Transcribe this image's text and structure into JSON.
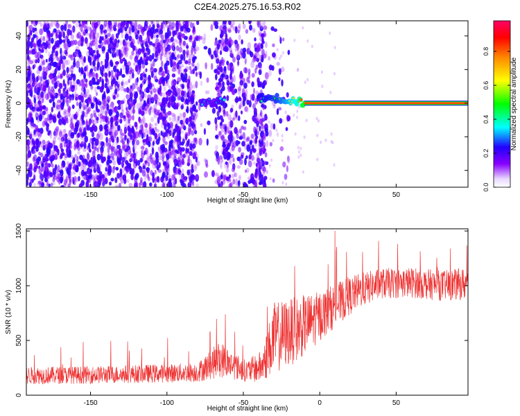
{
  "page": {
    "title": "C2E4.2025.275.16.53.R02"
  },
  "chart_data": [
    {
      "type": "heatmap",
      "name": "spectrogram",
      "xlabel": "Height of straight line (km)",
      "ylabel": "Frequency (Hz)",
      "xlim": [
        -192,
        97
      ],
      "ylim": [
        -50,
        49
      ],
      "xticks": [
        -150,
        -100,
        -50,
        0,
        50
      ],
      "yticks": [
        -40,
        -20,
        0,
        20,
        40
      ],
      "colorbar": {
        "label": "Normalized spectral amplitude",
        "range": [
          0.0,
          0.98
        ],
        "ticks": [
          "0.0",
          "0.2",
          "0.4",
          "0.6",
          "0.8"
        ],
        "tick_values": [
          0.0,
          0.2,
          0.4,
          0.6,
          0.8
        ],
        "colors": [
          "#ffffff",
          "#8800ff",
          "#2200ff",
          "#00ffff",
          "#00ff00",
          "#ffff00",
          "#ff8800",
          "#ff0000",
          "#ff0066"
        ]
      },
      "regions": [
        {
          "x_range": [
            -192,
            -80
          ],
          "density": "dense",
          "amplitude": 0.1
        },
        {
          "x_range": [
            -80,
            -68
          ],
          "density": "sparse",
          "amplitude": 0.05
        },
        {
          "x_range": [
            -68,
            -57
          ],
          "density": "dense",
          "amplitude": 0.1
        },
        {
          "x_range": [
            -57,
            -42
          ],
          "density": "medium",
          "amplitude": 0.07
        },
        {
          "x_range": [
            -42,
            -35
          ],
          "density": "dense",
          "amplitude": 0.1
        },
        {
          "x_range": [
            -35,
            -20
          ],
          "density": "sparse",
          "amplitude": 0.04
        }
      ],
      "signal_track": [
        {
          "x": -78,
          "y": 0,
          "amplitude": 0.35
        },
        {
          "x": -70,
          "y": 0,
          "amplitude": 0.3
        },
        {
          "x": -63,
          "y": 2,
          "amplitude": 0.4
        },
        {
          "x": -40,
          "y": 3,
          "amplitude": 0.45
        },
        {
          "x": -28,
          "y": 3,
          "amplitude": 0.5
        },
        {
          "x": -15,
          "y": 1,
          "amplitude": 0.7
        },
        {
          "x": -10,
          "y": 0,
          "amplitude": 0.9
        },
        {
          "x": 97,
          "y": 0,
          "amplitude": 0.95
        }
      ],
      "line_color": "#ff0000"
    },
    {
      "type": "line",
      "name": "snr",
      "xlabel": "Height of straight line (km)",
      "ylabel": "SNR (10 * v/v)",
      "xlim": [
        -192,
        97
      ],
      "ylim": [
        0,
        1520
      ],
      "xticks": [
        -150,
        -100,
        -50,
        0,
        50
      ],
      "yticks": [
        0,
        500,
        1000,
        1500
      ],
      "color": "#ee3333",
      "envelope": [
        {
          "x": -192,
          "y": 180,
          "spread": 80
        },
        {
          "x": -150,
          "y": 185,
          "spread": 80
        },
        {
          "x": -100,
          "y": 200,
          "spread": 85
        },
        {
          "x": -80,
          "y": 210,
          "spread": 90
        },
        {
          "x": -65,
          "y": 330,
          "spread": 170
        },
        {
          "x": -58,
          "y": 280,
          "spread": 130
        },
        {
          "x": -48,
          "y": 220,
          "spread": 100
        },
        {
          "x": -38,
          "y": 260,
          "spread": 150
        },
        {
          "x": -30,
          "y": 520,
          "spread": 330
        },
        {
          "x": -15,
          "y": 600,
          "spread": 300
        },
        {
          "x": 0,
          "y": 720,
          "spread": 230
        },
        {
          "x": 10,
          "y": 820,
          "spread": 200
        },
        {
          "x": 25,
          "y": 950,
          "spread": 160
        },
        {
          "x": 40,
          "y": 1020,
          "spread": 140
        },
        {
          "x": 60,
          "y": 1030,
          "spread": 140
        },
        {
          "x": 80,
          "y": 1000,
          "spread": 140
        },
        {
          "x": 97,
          "y": 1020,
          "spread": 150
        }
      ]
    }
  ]
}
